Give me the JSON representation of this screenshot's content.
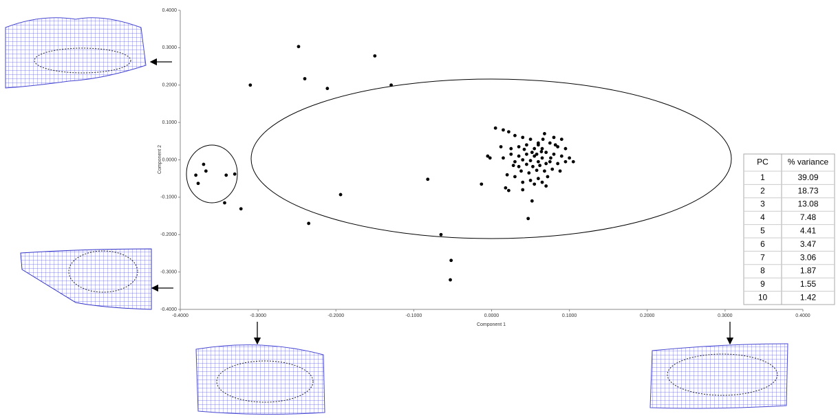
{
  "chart_data": {
    "type": "scatter",
    "xlabel": "Component 1",
    "ylabel": "Component 2",
    "color": "#000000",
    "xlim": [
      -0.4,
      0.4
    ],
    "ylim": [
      -0.4,
      0.4
    ],
    "xticks": [
      {
        "value": -0.4,
        "label": "-0.4000"
      },
      {
        "value": -0.3,
        "label": "-0.3000"
      },
      {
        "value": -0.2,
        "label": "-0.2000"
      },
      {
        "value": -0.1,
        "label": "-0.1000"
      },
      {
        "value": 0,
        "label": "0.0000"
      },
      {
        "value": 0.1,
        "label": "0.1000"
      },
      {
        "value": 0.2,
        "label": "0.2000"
      },
      {
        "value": 0.3,
        "label": "0.3000"
      },
      {
        "value": 0.4,
        "label": "0.4000"
      }
    ],
    "yticks": [
      {
        "value": 0.4,
        "label": "0.4000"
      },
      {
        "value": 0.3,
        "label": "0.3000"
      },
      {
        "value": 0.2,
        "label": "0.2000"
      },
      {
        "value": 0.1,
        "label": "0.1000"
      },
      {
        "value": 0,
        "label": "0.0000"
      },
      {
        "value": -0.1,
        "label": "-0.1000"
      },
      {
        "value": -0.2,
        "label": "-0.2000"
      },
      {
        "value": -0.3,
        "label": "-0.3000"
      },
      {
        "value": -0.4,
        "label": "-0.4000"
      }
    ],
    "x": [
      -0.248,
      -0.15,
      -0.31,
      -0.24,
      -0.211,
      -0.129,
      -0.37,
      -0.367,
      -0.38,
      -0.377,
      -0.341,
      -0.33,
      -0.343,
      -0.322,
      -0.235,
      -0.194,
      -0.082,
      -0.065,
      -0.052,
      -0.053,
      -0.013,
      0.005,
      0.015,
      0.022,
      0.03,
      0.04,
      0.05,
      0.068,
      0.08,
      0.09,
      0.075,
      0.06,
      0.045,
      0.035,
      0.025,
      0.012,
      0.055,
      0.065,
      0.085,
      0.095,
      0.07,
      0.08,
      0.09,
      0.1,
      0.105,
      0.095,
      0.085,
      0.075,
      0.065,
      0.055,
      0.045,
      0.035,
      0.025,
      0.015,
      -0.005,
      -0.002,
      0.04,
      0.05,
      0.06,
      0.07,
      0.052,
      0.058,
      0.062,
      0.045,
      0.035,
      0.028,
      0.038,
      0.048,
      0.058,
      0.068,
      0.078,
      0.088,
      0.072,
      0.06,
      0.05,
      0.04,
      0.03,
      0.02,
      0.065,
      0.055,
      0.07,
      0.018,
      0.022,
      0.04,
      0.052,
      0.047,
      0.06,
      0.082,
      0.066,
      0.053,
      0.042,
      0.064,
      0.076,
      0.03
    ],
    "values": [
      0.303,
      0.278,
      0.2,
      0.217,
      0.191,
      0.2,
      -0.012,
      -0.03,
      -0.041,
      -0.063,
      -0.041,
      -0.038,
      -0.115,
      -0.131,
      -0.17,
      -0.093,
      -0.052,
      -0.2,
      -0.269,
      -0.321,
      -0.065,
      0.085,
      0.08,
      0.075,
      0.065,
      0.06,
      0.055,
      0.07,
      0.06,
      0.055,
      0.045,
      0.045,
      0.04,
      0.035,
      0.03,
      0.035,
      0.03,
      0.03,
      0.035,
      0.03,
      0.02,
      0.015,
      0.01,
      0.005,
      -0.005,
      -0.005,
      -0.01,
      -0.005,
      0.005,
      0.01,
      0.015,
      0.01,
      0.015,
      0.005,
      0.01,
      0.005,
      0.0,
      -0.002,
      -0.005,
      -0.01,
      0.02,
      0.015,
      -0.015,
      -0.012,
      -0.018,
      -0.015,
      -0.03,
      -0.035,
      -0.028,
      -0.03,
      -0.025,
      -0.03,
      -0.045,
      -0.05,
      -0.055,
      -0.06,
      -0.045,
      -0.04,
      -0.06,
      -0.065,
      -0.07,
      -0.075,
      -0.082,
      -0.08,
      -0.11,
      -0.157,
      0.04,
      0.04,
      0.055,
      -0.018,
      0.028,
      0.022,
      0.005,
      -0.005
    ]
  },
  "table": {
    "header": [
      "PC",
      "% variance"
    ],
    "rows": [
      [
        1,
        39.09
      ],
      [
        2,
        18.73
      ],
      [
        3,
        13.08
      ],
      [
        4,
        7.48
      ],
      [
        5,
        4.41
      ],
      [
        6,
        3.47
      ],
      [
        7,
        3.06
      ],
      [
        8,
        1.87
      ],
      [
        9,
        1.55
      ],
      [
        10,
        1.42
      ]
    ]
  }
}
